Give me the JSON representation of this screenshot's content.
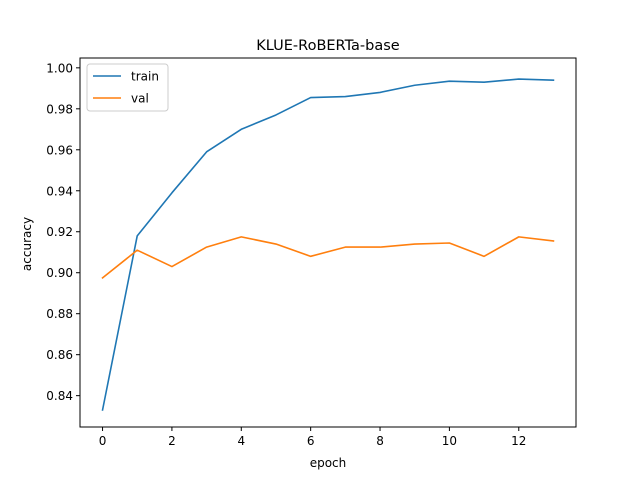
{
  "chart_data": {
    "type": "line",
    "title": "KLUE-RoBERTa-base",
    "xlabel": "epoch",
    "ylabel": "accuracy",
    "xlim": [
      -0.65,
      13.65
    ],
    "ylim": [
      0.8247,
      1.0048
    ],
    "xticks": [
      0,
      2,
      4,
      6,
      8,
      10,
      12
    ],
    "xtick_labels": [
      "0",
      "2",
      "4",
      "6",
      "8",
      "10",
      "12"
    ],
    "yticks": [
      0.84,
      0.86,
      0.88,
      0.9,
      0.92,
      0.94,
      0.96,
      0.98,
      1.0
    ],
    "ytick_labels": [
      "0.84",
      "0.86",
      "0.88",
      "0.90",
      "0.92",
      "0.94",
      "0.96",
      "0.98",
      "1.00"
    ],
    "grid": false,
    "legend_position": "top-left",
    "x": [
      0,
      1,
      2,
      3,
      4,
      5,
      6,
      7,
      8,
      9,
      10,
      11,
      12,
      13
    ],
    "series": [
      {
        "name": "train",
        "color": "#1f77b4",
        "values": [
          0.833,
          0.918,
          0.939,
          0.959,
          0.97,
          0.977,
          0.9855,
          0.986,
          0.988,
          0.9915,
          0.9935,
          0.993,
          0.9945,
          0.994
        ]
      },
      {
        "name": "val",
        "color": "#ff7f0e",
        "values": [
          0.8975,
          0.911,
          0.903,
          0.9125,
          0.9175,
          0.914,
          0.908,
          0.9125,
          0.9125,
          0.914,
          0.9145,
          0.908,
          0.9175,
          0.9155
        ]
      }
    ]
  }
}
